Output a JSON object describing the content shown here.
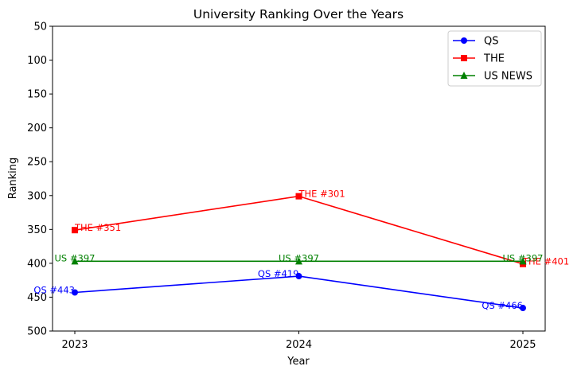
{
  "chart_data": {
    "type": "line",
    "title": "University Ranking Over the Years",
    "xlabel": "Year",
    "ylabel": "Ranking",
    "categories": [
      "2023",
      "2024",
      "2025"
    ],
    "y_ticks": [
      "50",
      "100",
      "150",
      "200",
      "250",
      "300",
      "350",
      "400",
      "450",
      "500"
    ],
    "ylim": [
      500,
      50
    ],
    "y_inverted": true,
    "grid": false,
    "legend_position": "top-right",
    "series": [
      {
        "name": "QS",
        "color": "#0000ff",
        "marker": "circle",
        "values": [
          443,
          419,
          466
        ],
        "labels": [
          "QS #443",
          "QS #419",
          "QS #466"
        ]
      },
      {
        "name": "THE",
        "color": "#ff0000",
        "marker": "square",
        "values": [
          351,
          301,
          401
        ],
        "labels": [
          "THE #351",
          "THE #301",
          "THE #401"
        ]
      },
      {
        "name": "US NEWS",
        "color": "#008000",
        "marker": "triangle",
        "values": [
          397,
          397,
          397
        ],
        "labels": [
          "US #397",
          "US #397",
          "US #397"
        ]
      }
    ]
  }
}
